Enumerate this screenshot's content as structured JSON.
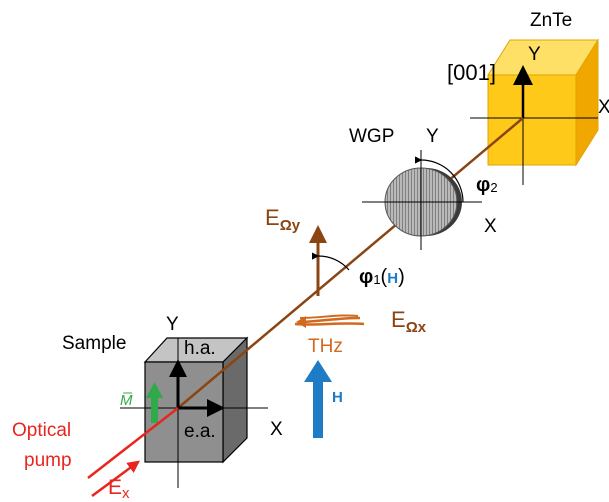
{
  "labels": {
    "znte": "ZnTe",
    "axis_001": "[001]",
    "znte_y": "Y",
    "znte_x": "X",
    "wgp": "WGP",
    "wgp_y": "Y",
    "wgp_x": "X",
    "phi2_symbol": "φ",
    "phi2_sub": "2",
    "e_omega_y_main": "E",
    "e_omega_y_sub": "Ωy",
    "phi1_symbol": "φ",
    "phi1_sub": "1",
    "phi1_open": "(",
    "phi1_h": "H",
    "phi1_close": ")",
    "e_omega_x_main": "E",
    "e_omega_x_sub": "Ωx",
    "thz": "THz",
    "h_field": "H",
    "sample": "Sample",
    "sample_y": "Y",
    "hard_axis": "h.a.",
    "easy_axis": "e.a.",
    "sample_x": "X",
    "magnetization": "M̅",
    "optical": "Optical",
    "pump": "pump",
    "ex_main": "E",
    "ex_sub": "x"
  },
  "colors": {
    "brown": "#8B4513",
    "thz_orange": "#D2691E",
    "red": "#E8261F",
    "blue": "#1E7BC4",
    "green": "#2EAA4A",
    "cube_front": "#8f8f8f",
    "cube_top": "#c4c4c4",
    "cube_side": "#6a6a6a",
    "znte_front": "#FFC91A",
    "znte_top": "#FFE066",
    "znte_side": "#F0A800"
  }
}
